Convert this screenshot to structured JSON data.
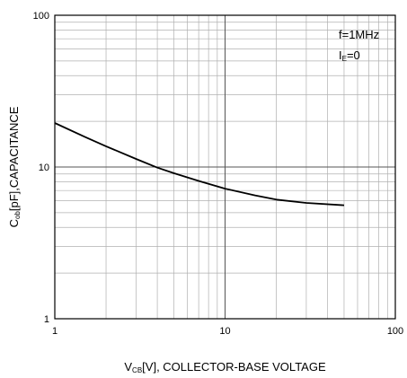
{
  "chart_data": {
    "type": "line",
    "xscale": "log",
    "yscale": "log",
    "xlim": [
      1,
      100
    ],
    "ylim": [
      1,
      100
    ],
    "grid": true,
    "x_ticks": [
      "1",
      "10",
      "100"
    ],
    "y_ticks": [
      "100",
      "10",
      "1"
    ],
    "xlabel": {
      "main": "V",
      "sub": "CB",
      "rest": "[V], COLLECTOR-BASE VOLTAGE"
    },
    "ylabel": {
      "main": "C",
      "sub": "ob",
      "rest": "[pF],CAPACITANCE"
    },
    "annotations": {
      "line1": "f=1MHz",
      "line2_main": "I",
      "line2_sub": "E",
      "line2_rest": "=0"
    },
    "series": [
      {
        "x": [
          1,
          1.5,
          2,
          3,
          4,
          5,
          7,
          10,
          15,
          20,
          30,
          50
        ],
        "y": [
          19.5,
          15.8,
          13.7,
          11.3,
          9.9,
          9.1,
          8.1,
          7.2,
          6.5,
          6.1,
          5.8,
          5.6
        ]
      }
    ],
    "colors": {
      "line": "#000000",
      "grid_minor": "#b0b0b0",
      "grid_major": "#555555"
    }
  }
}
